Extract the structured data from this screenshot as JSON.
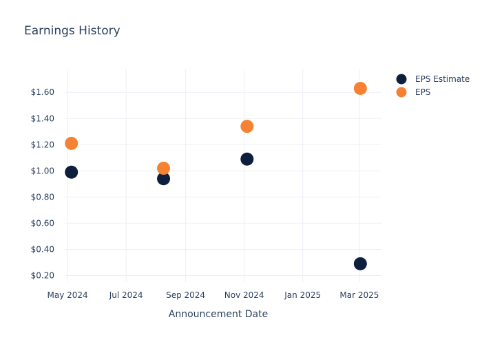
{
  "chart_data": {
    "type": "scatter",
    "title": "Earnings History",
    "xlabel": "Announcement Date",
    "ylabel": "",
    "x_axis_type": "date",
    "xlim": [
      "2024-04-18",
      "2025-03-24"
    ],
    "ylim": [
      0.15,
      1.78
    ],
    "x_ticks": [
      {
        "date": "2024-05-01",
        "label": "May 2024"
      },
      {
        "date": "2024-07-01",
        "label": "Jul 2024"
      },
      {
        "date": "2024-09-01",
        "label": "Sep 2024"
      },
      {
        "date": "2024-11-01",
        "label": "Nov 2024"
      },
      {
        "date": "2025-01-01",
        "label": "Jan 2025"
      },
      {
        "date": "2025-03-01",
        "label": "Mar 2025"
      }
    ],
    "y_ticks": [
      {
        "value": 0.2,
        "label": "$0.20"
      },
      {
        "value": 0.4,
        "label": "$0.40"
      },
      {
        "value": 0.6,
        "label": "$0.60"
      },
      {
        "value": 0.8,
        "label": "$0.80"
      },
      {
        "value": 1.0,
        "label": "$1.00"
      },
      {
        "value": 1.2,
        "label": "$1.20"
      },
      {
        "value": 1.4,
        "label": "$1.40"
      },
      {
        "value": 1.6,
        "label": "$1.60"
      }
    ],
    "grid": true,
    "legend_position": "top-right",
    "series": [
      {
        "name": "EPS Estimate",
        "color": "#0d1f3c",
        "points": [
          {
            "x": "2024-05-05",
            "y": 0.99
          },
          {
            "x": "2024-08-09",
            "y": 0.94
          },
          {
            "x": "2024-11-04",
            "y": 1.09
          },
          {
            "x": "2025-03-02",
            "y": 0.29
          }
        ]
      },
      {
        "name": "EPS",
        "color": "#f58233",
        "points": [
          {
            "x": "2024-05-05",
            "y": 1.21
          },
          {
            "x": "2024-08-09",
            "y": 1.02
          },
          {
            "x": "2024-11-04",
            "y": 1.34
          },
          {
            "x": "2025-03-02",
            "y": 1.63
          }
        ]
      }
    ]
  }
}
